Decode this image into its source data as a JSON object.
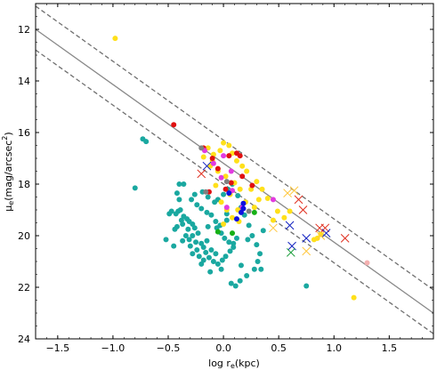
{
  "chart_data": {
    "type": "scatter",
    "title": "",
    "xlabel": "log r_e(kpc)",
    "ylabel": "μ_e (mag/arcsec^2)",
    "xlim": [
      -1.7,
      1.9
    ],
    "ylim": [
      24,
      11
    ],
    "y_inverted": true,
    "grid": false,
    "legend": "none",
    "x_ticks": [
      -1.5,
      -1.0,
      -0.5,
      0.0,
      0.5,
      1.0,
      1.5
    ],
    "x_tick_labels": [
      "−1.5",
      "−1.0",
      "−0.5",
      "0.0",
      "0.5",
      "1.0",
      "1.5"
    ],
    "y_ticks": [
      12,
      14,
      16,
      18,
      20,
      22,
      24
    ],
    "y_tick_labels": [
      "12",
      "14",
      "16",
      "18",
      "20",
      "22",
      "24"
    ],
    "lines": [
      {
        "style": "solid",
        "color": "#888888",
        "x": [
          -1.7,
          1.9
        ],
        "y": [
          12.0,
          23.0
        ]
      },
      {
        "style": "dashed",
        "color": "#707070",
        "x": [
          -1.7,
          1.9
        ],
        "y": [
          11.1,
          22.1
        ]
      },
      {
        "style": "dashed",
        "color": "#707070",
        "x": [
          -1.7,
          1.9
        ],
        "y": [
          12.8,
          23.8
        ]
      }
    ],
    "series": [
      {
        "marker": "circle",
        "color": "#1aa8a0",
        "points": [
          [
            -0.73,
            16.25
          ],
          [
            -0.7,
            16.35
          ],
          [
            -0.8,
            18.15
          ],
          [
            -0.4,
            18.0
          ],
          [
            -0.36,
            18.0
          ],
          [
            -0.42,
            18.35
          ],
          [
            -0.4,
            18.6
          ],
          [
            -0.39,
            19.0
          ],
          [
            -0.41,
            19.05
          ],
          [
            -0.43,
            19.15
          ],
          [
            -0.47,
            19.05
          ],
          [
            -0.49,
            19.15
          ],
          [
            -0.42,
            19.65
          ],
          [
            -0.38,
            19.4
          ],
          [
            -0.36,
            19.25
          ],
          [
            -0.33,
            19.35
          ],
          [
            -0.37,
            19.55
          ],
          [
            -0.31,
            19.45
          ],
          [
            -0.28,
            19.55
          ],
          [
            -0.32,
            19.75
          ],
          [
            -0.26,
            19.7
          ],
          [
            -0.23,
            19.9
          ],
          [
            -0.28,
            20.0
          ],
          [
            -0.34,
            20.0
          ],
          [
            -0.31,
            20.15
          ],
          [
            -0.37,
            20.2
          ],
          [
            -0.25,
            20.25
          ],
          [
            -0.2,
            20.3
          ],
          [
            -0.15,
            20.2
          ],
          [
            -0.18,
            20.45
          ],
          [
            -0.24,
            20.55
          ],
          [
            -0.28,
            20.7
          ],
          [
            -0.22,
            20.8
          ],
          [
            -0.16,
            20.65
          ],
          [
            -0.11,
            20.55
          ],
          [
            -0.07,
            20.7
          ],
          [
            -0.13,
            20.85
          ],
          [
            -0.18,
            20.95
          ],
          [
            -0.09,
            21.0
          ],
          [
            -0.05,
            21.1
          ],
          [
            -0.01,
            20.95
          ],
          [
            0.02,
            20.8
          ],
          [
            0.06,
            20.6
          ],
          [
            0.09,
            20.45
          ],
          [
            0.05,
            20.25
          ],
          [
            0.01,
            20.1
          ],
          [
            -0.02,
            19.9
          ],
          [
            -0.06,
            19.7
          ],
          [
            -0.03,
            19.6
          ],
          [
            0.03,
            19.4
          ],
          [
            -0.07,
            19.45
          ],
          [
            -0.11,
            19.2
          ],
          [
            -0.15,
            19.1
          ],
          [
            -0.2,
            18.95
          ],
          [
            -0.24,
            18.8
          ],
          [
            -0.29,
            18.6
          ],
          [
            -0.26,
            18.4
          ],
          [
            -0.19,
            18.3
          ],
          [
            -0.14,
            18.5
          ],
          [
            -0.08,
            18.7
          ],
          [
            -0.05,
            18.6
          ],
          [
            0.0,
            18.4
          ],
          [
            0.04,
            18.2
          ],
          [
            0.08,
            18.0
          ],
          [
            0.13,
            18.45
          ],
          [
            0.16,
            18.9
          ],
          [
            0.19,
            19.2
          ],
          [
            0.23,
            19.6
          ],
          [
            0.26,
            20.0
          ],
          [
            0.3,
            20.35
          ],
          [
            0.33,
            20.7
          ],
          [
            0.31,
            21.0
          ],
          [
            0.28,
            21.3
          ],
          [
            0.34,
            21.3
          ],
          [
            0.21,
            21.55
          ],
          [
            0.15,
            21.75
          ],
          [
            0.11,
            21.95
          ],
          [
            0.07,
            21.85
          ],
          [
            -0.12,
            21.4
          ],
          [
            -0.02,
            21.3
          ],
          [
            0.16,
            21.15
          ],
          [
            -0.3,
            20.4
          ],
          [
            -0.45,
            20.4
          ],
          [
            -0.52,
            20.15
          ],
          [
            -0.44,
            19.75
          ],
          [
            -0.2,
            21.1
          ],
          [
            0.09,
            20.3
          ],
          [
            0.12,
            20.1
          ],
          [
            0.22,
            20.15
          ],
          [
            0.36,
            19.8
          ],
          [
            0.03,
            19.15
          ],
          [
            -0.14,
            19.65
          ],
          [
            0.75,
            21.95
          ]
        ]
      },
      {
        "marker": "circle",
        "color": "#ffe01a",
        "points": [
          [
            -0.98,
            12.35
          ],
          [
            1.18,
            22.4
          ],
          [
            0.82,
            20.15
          ],
          [
            0.88,
            19.95
          ],
          [
            0.85,
            20.1
          ],
          [
            0.6,
            19.05
          ],
          [
            0.55,
            19.3
          ],
          [
            0.49,
            19.05
          ],
          [
            0.45,
            19.4
          ],
          [
            0.4,
            18.55
          ],
          [
            0.35,
            18.2
          ],
          [
            0.3,
            17.9
          ],
          [
            0.25,
            18.2
          ],
          [
            0.21,
            17.5
          ],
          [
            0.17,
            17.3
          ],
          [
            0.12,
            17.1
          ],
          [
            0.08,
            16.8
          ],
          [
            0.05,
            16.5
          ],
          [
            0.0,
            16.4
          ],
          [
            -0.03,
            16.7
          ],
          [
            -0.09,
            16.85
          ],
          [
            -0.14,
            16.6
          ],
          [
            -0.18,
            16.95
          ],
          [
            -0.12,
            17.3
          ],
          [
            -0.05,
            17.5
          ],
          [
            0.02,
            17.7
          ],
          [
            0.1,
            17.95
          ],
          [
            0.15,
            18.2
          ],
          [
            0.06,
            18.4
          ],
          [
            -0.02,
            18.7
          ],
          [
            0.03,
            19.0
          ],
          [
            0.08,
            19.3
          ],
          [
            0.13,
            19.0
          ],
          [
            0.2,
            18.7
          ],
          [
            0.28,
            18.9
          ],
          [
            0.32,
            18.6
          ],
          [
            -0.1,
            17.1
          ],
          [
            0.0,
            19.55
          ],
          [
            0.14,
            19.45
          ],
          [
            -0.07,
            18.05
          ]
        ]
      },
      {
        "marker": "circle",
        "color": "#e01010",
        "points": [
          [
            -0.45,
            15.7
          ],
          [
            -0.18,
            16.6
          ],
          [
            -0.1,
            17.0
          ],
          [
            -0.05,
            17.4
          ],
          [
            0.05,
            16.9
          ],
          [
            0.12,
            16.8
          ],
          [
            0.15,
            16.9
          ],
          [
            0.07,
            17.95
          ],
          [
            0.17,
            17.7
          ],
          [
            0.26,
            18.05
          ],
          [
            0.02,
            18.2
          ],
          [
            -0.13,
            18.3
          ]
        ]
      },
      {
        "marker": "circle",
        "color": "#e23be0",
        "points": [
          [
            -0.17,
            16.7
          ],
          [
            0.0,
            16.9
          ],
          [
            -0.09,
            17.2
          ],
          [
            0.07,
            17.5
          ],
          [
            -0.02,
            17.75
          ],
          [
            0.08,
            18.25
          ],
          [
            0.45,
            18.6
          ],
          [
            0.17,
            18.9
          ],
          [
            0.03,
            18.9
          ]
        ]
      },
      {
        "marker": "circle",
        "color": "#1010e0",
        "points": [
          [
            0.05,
            18.35
          ],
          [
            0.18,
            18.75
          ],
          [
            0.16,
            19.1
          ],
          [
            0.12,
            19.35
          ],
          [
            0.18,
            18.95
          ]
        ]
      },
      {
        "marker": "circle",
        "color": "#16b016",
        "points": [
          [
            0.08,
            19.9
          ],
          [
            0.28,
            19.1
          ],
          [
            -0.05,
            19.85
          ]
        ]
      },
      {
        "marker": "circle",
        "color": "#808080",
        "points": [
          [
            -0.2,
            16.6
          ],
          [
            -0.16,
            18.3
          ],
          [
            0.03,
            17.9
          ],
          [
            0.23,
            19.05
          ]
        ]
      },
      {
        "marker": "circle",
        "color": "#f4b0b0",
        "points": [
          [
            1.3,
            21.05
          ]
        ]
      },
      {
        "marker": "x",
        "color": "#e03020",
        "points": [
          [
            -0.2,
            17.6
          ],
          [
            0.68,
            18.6
          ],
          [
            0.72,
            19.0
          ],
          [
            0.87,
            19.7
          ],
          [
            0.92,
            19.7
          ],
          [
            1.1,
            20.1
          ]
        ]
      },
      {
        "marker": "x",
        "color": "#1020c0",
        "points": [
          [
            -0.15,
            17.3
          ],
          [
            0.6,
            19.6
          ],
          [
            0.62,
            20.4
          ],
          [
            0.75,
            20.1
          ],
          [
            0.93,
            19.9
          ]
        ]
      },
      {
        "marker": "x",
        "color": "#ffc840",
        "points": [
          [
            0.58,
            18.35
          ],
          [
            0.64,
            18.25
          ],
          [
            0.45,
            19.7
          ],
          [
            0.88,
            20.0
          ],
          [
            0.75,
            20.6
          ]
        ]
      },
      {
        "marker": "x",
        "color": "#20a040",
        "points": [
          [
            0.61,
            20.65
          ]
        ]
      }
    ]
  }
}
